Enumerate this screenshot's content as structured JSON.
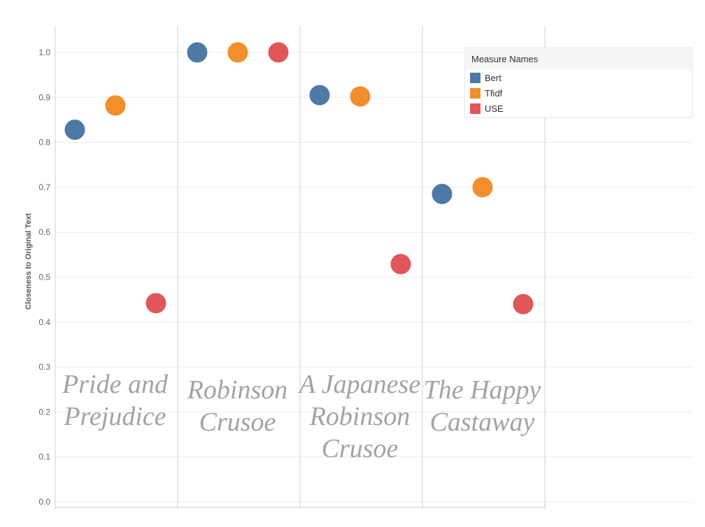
{
  "chart_data": {
    "type": "scatter",
    "title": "",
    "xlabel": "",
    "ylabel": "Closeness to Original Text",
    "ylim": [
      0,
      1.0
    ],
    "yticks": [
      "0.0",
      "0.1",
      "0.2",
      "0.3",
      "0.4",
      "0.5",
      "0.6",
      "0.7",
      "0.8",
      "0.9",
      "1.0"
    ],
    "grid": true,
    "legend_placement": "top-right",
    "categories": [
      [
        "Pride and",
        "Prejudice"
      ],
      [
        "Robinson",
        "Crusoe"
      ],
      [
        "A Japanese",
        "Robinson",
        "Crusoe"
      ],
      [
        "The Happy",
        "Castaway"
      ]
    ],
    "series": [
      {
        "name": "Bert",
        "color": "#4e79a7",
        "values": [
          0.828,
          1.0,
          0.905,
          0.685
        ]
      },
      {
        "name": "Tfidf",
        "color": "#f28e2b",
        "values": [
          0.882,
          1.0,
          0.902,
          0.7
        ]
      },
      {
        "name": "USE",
        "color": "#e15759",
        "values": [
          0.442,
          1.0,
          0.529,
          0.44
        ]
      }
    ]
  },
  "legend": {
    "title": "Measure Names",
    "items": [
      "Bert",
      "Tfidf",
      "USE"
    ]
  }
}
